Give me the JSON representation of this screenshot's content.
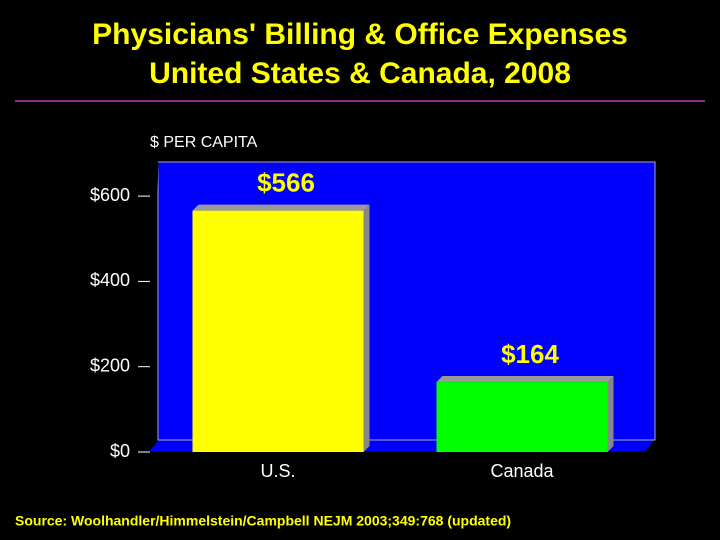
{
  "chart_data": {
    "type": "bar",
    "title": "Physicians' Billing & Office Expenses",
    "subtitle": "United States & Canada, 2008",
    "y_label": "$ PER CAPITA",
    "categories": [
      "U.S.",
      "Canada"
    ],
    "values": [
      566,
      164
    ],
    "value_labels": [
      "$566",
      "$164"
    ],
    "colors": [
      "#ffff00",
      "#00ff00"
    ],
    "ylim": [
      0,
      680
    ],
    "yticks": [
      {
        "value": 0,
        "label": "$0"
      },
      {
        "value": 200,
        "label": "$200"
      },
      {
        "value": 400,
        "label": "$400"
      },
      {
        "value": 600,
        "label": "$600"
      }
    ],
    "source": "Source: Woolhandler/Himmelstein/Campbell NEJM 2003;349:768 (updated)"
  }
}
